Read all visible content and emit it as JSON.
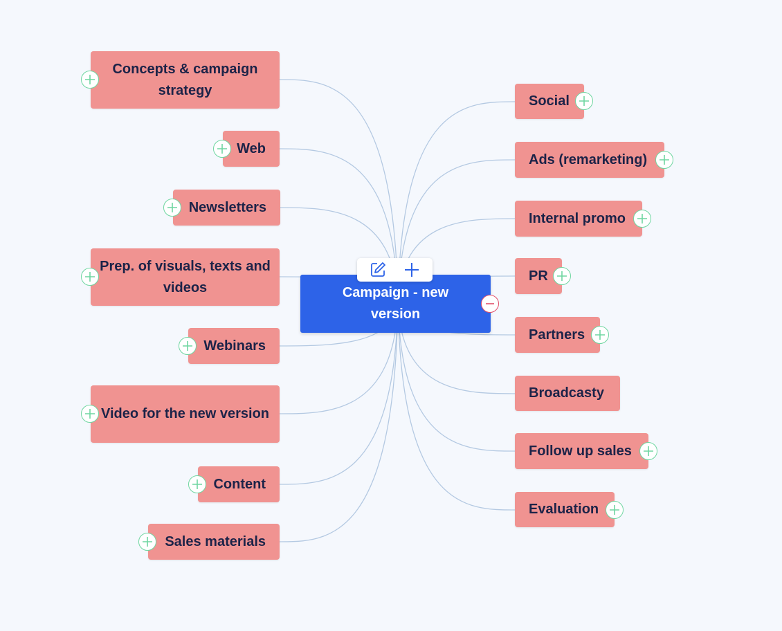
{
  "root": {
    "label": "Campaign - new version"
  },
  "toolbar": {
    "edit_icon": "edit-icon",
    "add_icon": "plus-icon"
  },
  "colors": {
    "background": "#f5f8fd",
    "node": "#f09391",
    "node_text": "#1c2348",
    "root": "#2d63e8",
    "add_button": "#6fd6a1",
    "collapse_button": "#e2506a",
    "link": "#b4c9e2"
  },
  "left_branches": [
    {
      "label": "Concepts & campaign strategy"
    },
    {
      "label": "Web"
    },
    {
      "label": "Newsletters"
    },
    {
      "label": "Prep. of visuals, texts and videos"
    },
    {
      "label": "Webinars"
    },
    {
      "label": "Video for the new version"
    },
    {
      "label": "Content"
    },
    {
      "label": "Sales materials"
    }
  ],
  "right_branches": [
    {
      "label": "Social"
    },
    {
      "label": "Ads (remarketing)"
    },
    {
      "label": "Internal promo"
    },
    {
      "label": "PR"
    },
    {
      "label": "Partners"
    },
    {
      "label": "Broadcasty"
    },
    {
      "label": "Follow up sales"
    },
    {
      "label": "Evaluation"
    }
  ]
}
